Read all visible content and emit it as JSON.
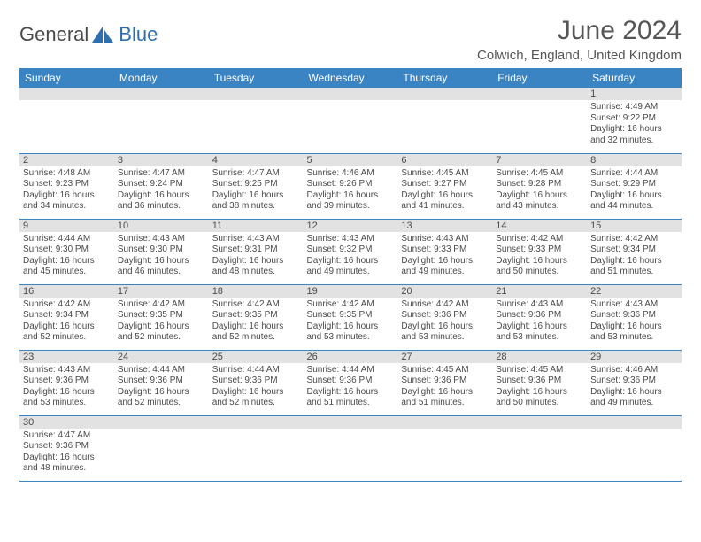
{
  "brand": {
    "part1": "General",
    "part2": "Blue"
  },
  "title": "June 2024",
  "location": "Colwich, England, United Kingdom",
  "colors": {
    "header_bg": "#3b84c4",
    "header_text": "#ffffff",
    "daynum_bg": "#e2e2e2",
    "text": "#4a4a4a",
    "row_border": "#3b84c4",
    "brand_blue": "#2f6fb0"
  },
  "weekdays": [
    "Sunday",
    "Monday",
    "Tuesday",
    "Wednesday",
    "Thursday",
    "Friday",
    "Saturday"
  ],
  "weeks": [
    [
      {
        "n": "",
        "sr": "",
        "ss": "",
        "dl": ""
      },
      {
        "n": "",
        "sr": "",
        "ss": "",
        "dl": ""
      },
      {
        "n": "",
        "sr": "",
        "ss": "",
        "dl": ""
      },
      {
        "n": "",
        "sr": "",
        "ss": "",
        "dl": ""
      },
      {
        "n": "",
        "sr": "",
        "ss": "",
        "dl": ""
      },
      {
        "n": "",
        "sr": "",
        "ss": "",
        "dl": ""
      },
      {
        "n": "1",
        "sr": "Sunrise: 4:49 AM",
        "ss": "Sunset: 9:22 PM",
        "dl": "Daylight: 16 hours and 32 minutes."
      }
    ],
    [
      {
        "n": "2",
        "sr": "Sunrise: 4:48 AM",
        "ss": "Sunset: 9:23 PM",
        "dl": "Daylight: 16 hours and 34 minutes."
      },
      {
        "n": "3",
        "sr": "Sunrise: 4:47 AM",
        "ss": "Sunset: 9:24 PM",
        "dl": "Daylight: 16 hours and 36 minutes."
      },
      {
        "n": "4",
        "sr": "Sunrise: 4:47 AM",
        "ss": "Sunset: 9:25 PM",
        "dl": "Daylight: 16 hours and 38 minutes."
      },
      {
        "n": "5",
        "sr": "Sunrise: 4:46 AM",
        "ss": "Sunset: 9:26 PM",
        "dl": "Daylight: 16 hours and 39 minutes."
      },
      {
        "n": "6",
        "sr": "Sunrise: 4:45 AM",
        "ss": "Sunset: 9:27 PM",
        "dl": "Daylight: 16 hours and 41 minutes."
      },
      {
        "n": "7",
        "sr": "Sunrise: 4:45 AM",
        "ss": "Sunset: 9:28 PM",
        "dl": "Daylight: 16 hours and 43 minutes."
      },
      {
        "n": "8",
        "sr": "Sunrise: 4:44 AM",
        "ss": "Sunset: 9:29 PM",
        "dl": "Daylight: 16 hours and 44 minutes."
      }
    ],
    [
      {
        "n": "9",
        "sr": "Sunrise: 4:44 AM",
        "ss": "Sunset: 9:30 PM",
        "dl": "Daylight: 16 hours and 45 minutes."
      },
      {
        "n": "10",
        "sr": "Sunrise: 4:43 AM",
        "ss": "Sunset: 9:30 PM",
        "dl": "Daylight: 16 hours and 46 minutes."
      },
      {
        "n": "11",
        "sr": "Sunrise: 4:43 AM",
        "ss": "Sunset: 9:31 PM",
        "dl": "Daylight: 16 hours and 48 minutes."
      },
      {
        "n": "12",
        "sr": "Sunrise: 4:43 AM",
        "ss": "Sunset: 9:32 PM",
        "dl": "Daylight: 16 hours and 49 minutes."
      },
      {
        "n": "13",
        "sr": "Sunrise: 4:43 AM",
        "ss": "Sunset: 9:33 PM",
        "dl": "Daylight: 16 hours and 49 minutes."
      },
      {
        "n": "14",
        "sr": "Sunrise: 4:42 AM",
        "ss": "Sunset: 9:33 PM",
        "dl": "Daylight: 16 hours and 50 minutes."
      },
      {
        "n": "15",
        "sr": "Sunrise: 4:42 AM",
        "ss": "Sunset: 9:34 PM",
        "dl": "Daylight: 16 hours and 51 minutes."
      }
    ],
    [
      {
        "n": "16",
        "sr": "Sunrise: 4:42 AM",
        "ss": "Sunset: 9:34 PM",
        "dl": "Daylight: 16 hours and 52 minutes."
      },
      {
        "n": "17",
        "sr": "Sunrise: 4:42 AM",
        "ss": "Sunset: 9:35 PM",
        "dl": "Daylight: 16 hours and 52 minutes."
      },
      {
        "n": "18",
        "sr": "Sunrise: 4:42 AM",
        "ss": "Sunset: 9:35 PM",
        "dl": "Daylight: 16 hours and 52 minutes."
      },
      {
        "n": "19",
        "sr": "Sunrise: 4:42 AM",
        "ss": "Sunset: 9:35 PM",
        "dl": "Daylight: 16 hours and 53 minutes."
      },
      {
        "n": "20",
        "sr": "Sunrise: 4:42 AM",
        "ss": "Sunset: 9:36 PM",
        "dl": "Daylight: 16 hours and 53 minutes."
      },
      {
        "n": "21",
        "sr": "Sunrise: 4:43 AM",
        "ss": "Sunset: 9:36 PM",
        "dl": "Daylight: 16 hours and 53 minutes."
      },
      {
        "n": "22",
        "sr": "Sunrise: 4:43 AM",
        "ss": "Sunset: 9:36 PM",
        "dl": "Daylight: 16 hours and 53 minutes."
      }
    ],
    [
      {
        "n": "23",
        "sr": "Sunrise: 4:43 AM",
        "ss": "Sunset: 9:36 PM",
        "dl": "Daylight: 16 hours and 53 minutes."
      },
      {
        "n": "24",
        "sr": "Sunrise: 4:44 AM",
        "ss": "Sunset: 9:36 PM",
        "dl": "Daylight: 16 hours and 52 minutes."
      },
      {
        "n": "25",
        "sr": "Sunrise: 4:44 AM",
        "ss": "Sunset: 9:36 PM",
        "dl": "Daylight: 16 hours and 52 minutes."
      },
      {
        "n": "26",
        "sr": "Sunrise: 4:44 AM",
        "ss": "Sunset: 9:36 PM",
        "dl": "Daylight: 16 hours and 51 minutes."
      },
      {
        "n": "27",
        "sr": "Sunrise: 4:45 AM",
        "ss": "Sunset: 9:36 PM",
        "dl": "Daylight: 16 hours and 51 minutes."
      },
      {
        "n": "28",
        "sr": "Sunrise: 4:45 AM",
        "ss": "Sunset: 9:36 PM",
        "dl": "Daylight: 16 hours and 50 minutes."
      },
      {
        "n": "29",
        "sr": "Sunrise: 4:46 AM",
        "ss": "Sunset: 9:36 PM",
        "dl": "Daylight: 16 hours and 49 minutes."
      }
    ],
    [
      {
        "n": "30",
        "sr": "Sunrise: 4:47 AM",
        "ss": "Sunset: 9:36 PM",
        "dl": "Daylight: 16 hours and 48 minutes."
      },
      {
        "n": "",
        "sr": "",
        "ss": "",
        "dl": ""
      },
      {
        "n": "",
        "sr": "",
        "ss": "",
        "dl": ""
      },
      {
        "n": "",
        "sr": "",
        "ss": "",
        "dl": ""
      },
      {
        "n": "",
        "sr": "",
        "ss": "",
        "dl": ""
      },
      {
        "n": "",
        "sr": "",
        "ss": "",
        "dl": ""
      },
      {
        "n": "",
        "sr": "",
        "ss": "",
        "dl": ""
      }
    ]
  ]
}
